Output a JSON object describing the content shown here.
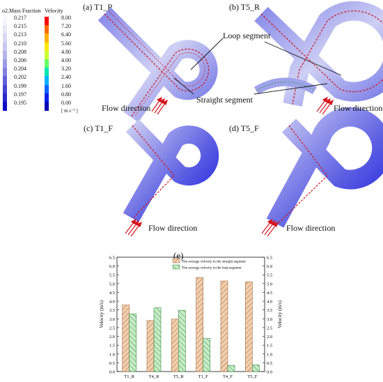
{
  "legend": {
    "o2_title": "o2.Mass Fraction",
    "o2_values": [
      "0.217",
      "0.215",
      "0.213",
      "0.210",
      "0.208",
      "0.206",
      "0.204",
      "0.202",
      "0.199",
      "0.197",
      "0.195"
    ],
    "o2_colors": [
      "#f4f4fb",
      "#e6e6f6",
      "#d8d8f2",
      "#c8c8ee",
      "#b4b4ea",
      "#9c9ce5",
      "#8080df",
      "#6060d8",
      "#4444d2",
      "#2828cc",
      "#0c0cc6"
    ],
    "vel_title": "Velocity",
    "vel_values": [
      "8.00",
      "7.20",
      "6.40",
      "5.60",
      "4.80",
      "4.00",
      "3.20",
      "2.40",
      "1.60",
      "0.80",
      "0.00"
    ],
    "vel_colors": [
      "#ff0000",
      "#ff6a00",
      "#ffb300",
      "#ffe600",
      "#ccff33",
      "#66ff66",
      "#00e6b3",
      "#00b3ff",
      "#0066ff",
      "#0022e6",
      "#0000b3"
    ],
    "vel_unit": "[ m s⁻¹ ]"
  },
  "panels": {
    "a": "(a) T1_R",
    "b": "(b) T5_R",
    "c": "(c) T1_F",
    "d": "(d) T5_F",
    "e": "(e)"
  },
  "annotations": {
    "loop_segment": "Loop segment",
    "straight_segment": "Straight segment",
    "flow_direction": "Flow direction"
  },
  "colors": {
    "pipe_blue": "#1f22e0",
    "pipe_light": "#b7b9ef",
    "streamline": "#d4131b",
    "straight_bar": "#f1cfae",
    "straight_hatch": "#a3663b",
    "loop_bar": "#c9ecc7",
    "loop_hatch": "#2f8a3f"
  },
  "chart_data": {
    "type": "bar",
    "categories": [
      "T1_R",
      "T4_R",
      "T5_R",
      "T1_F",
      "T4_F",
      "T5_F"
    ],
    "series": [
      {
        "name": "The average velocity in the straight segment",
        "values": [
          3.78,
          2.9,
          2.98,
          5.35,
          5.15,
          5.1
        ]
      },
      {
        "name": "The average velocity in the loop segment",
        "values": [
          3.28,
          3.62,
          3.48,
          1.88,
          0.35,
          0.38
        ]
      }
    ],
    "ylabel_left": "Velocity (m/s)",
    "ylabel_right": "Velocity (m/s)",
    "ylim": [
      0,
      6.5
    ],
    "yticks": [
      "0.0",
      "0.5",
      "1.0",
      "1.5",
      "2.0",
      "2.5",
      "3.0",
      "3.5",
      "4.0",
      "4.5",
      "5.0",
      "5.5",
      "6.0",
      "6.5"
    ],
    "legend_position": "top-right"
  }
}
